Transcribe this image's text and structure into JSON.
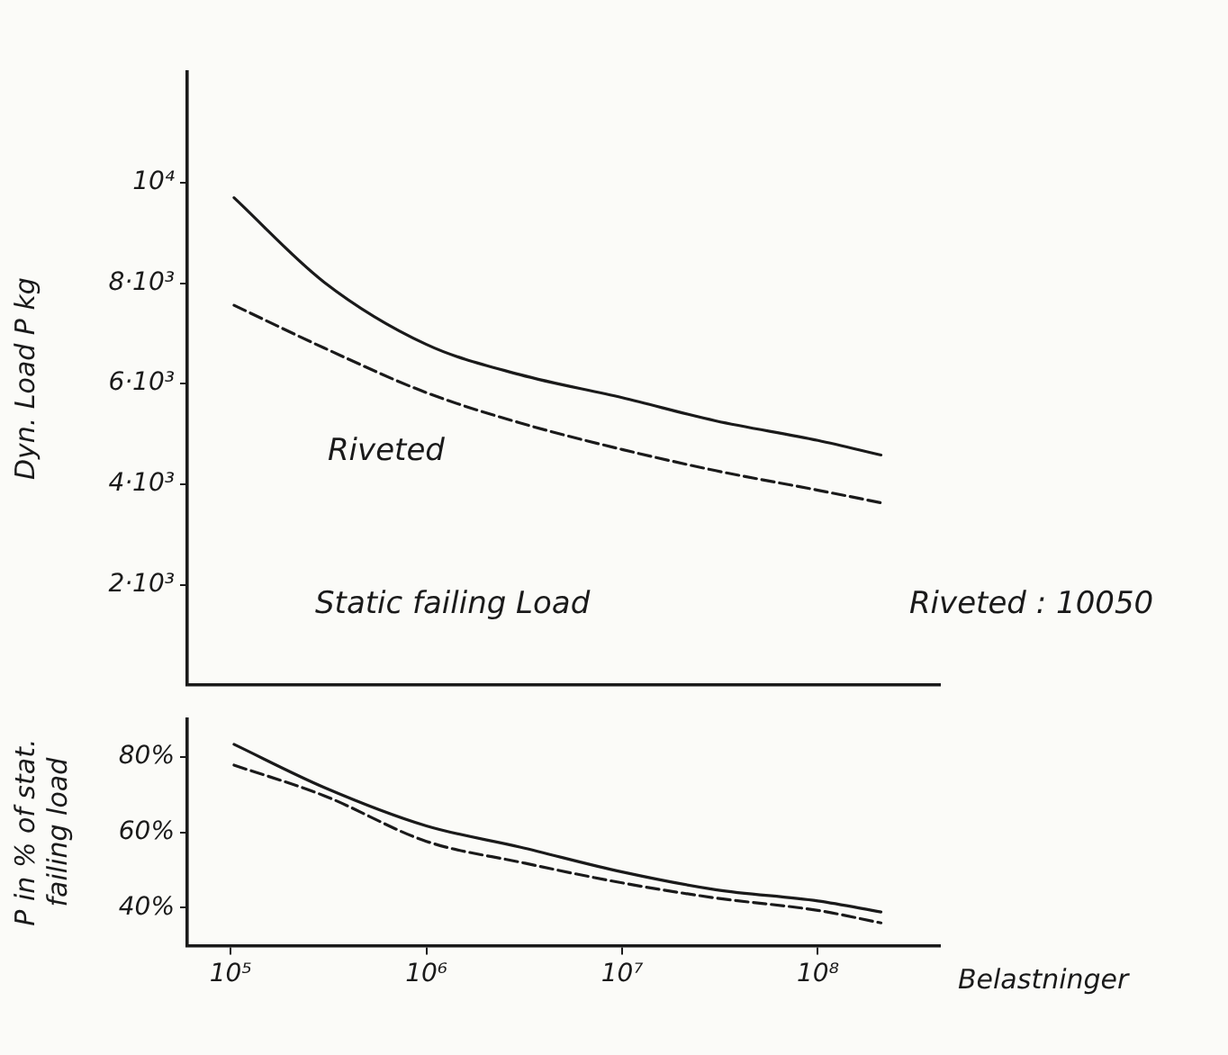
{
  "chart_data": [
    {
      "type": "line",
      "ylabel": "Dyn. Load P kg",
      "x": [
        104000,
        300000,
        1000000,
        3000000,
        10000000,
        30000000,
        100000000,
        210000000
      ],
      "series": [
        {
          "color": "#1a1a1a",
          "line_style": "solid",
          "values": [
            9700,
            8020,
            6780,
            6180,
            5720,
            5260,
            4870,
            4580
          ]
        },
        {
          "name": "Riveted",
          "color": "#1a1a1a",
          "line_style": "dashed",
          "values": [
            7560,
            6710,
            5820,
            5220,
            4690,
            4270,
            3880,
            3630
          ]
        }
      ],
      "xlim": [
        60000,
        420000000
      ],
      "log": "x",
      "ylim": [
        0,
        12200
      ],
      "yticks": [
        {
          "value": 2000,
          "label": "2·10³"
        },
        {
          "value": 4000,
          "label": "4·10³"
        },
        {
          "value": 6000,
          "label": "6·10³"
        },
        {
          "value": 8000,
          "label": "8·10³"
        },
        {
          "value": 10000,
          "label": "10⁴"
        }
      ],
      "tick_labels": "y",
      "grid": false,
      "legend": false,
      "marker": "none",
      "annotations": [
        "Static failing Load",
        "Riveted : 10050"
      ]
    },
    {
      "type": "line",
      "ylabel": "P in % of stat. failing load",
      "xlabel": "Belastninger",
      "x": [
        104000,
        300000,
        1000000,
        3000000,
        10000000,
        30000000,
        100000000,
        210000000
      ],
      "series": [
        {
          "color": "#1a1a1a",
          "line_style": "solid",
          "values": [
            83.3,
            71.9,
            61.7,
            56.1,
            49.5,
            44.8,
            41.8,
            38.9
          ]
        },
        {
          "color": "#1a1a1a",
          "line_style": "dashed",
          "values": [
            77.8,
            69.7,
            57.6,
            52.1,
            46.6,
            42.6,
            39.3,
            36.0
          ]
        }
      ],
      "xlim": [
        60000,
        420000000
      ],
      "xticks": [
        {
          "value": 100000,
          "label": "10⁵"
        },
        {
          "value": 1000000,
          "label": "10⁶"
        },
        {
          "value": 10000000,
          "label": "10⁷"
        },
        {
          "value": 100000000,
          "label": "10⁸"
        }
      ],
      "log": "x",
      "ylim": [
        30,
        90
      ],
      "yticks": [
        {
          "value": 40,
          "label": "40%"
        },
        {
          "value": 60,
          "label": "60%"
        },
        {
          "value": 80,
          "label": "80%"
        }
      ],
      "grid": false,
      "legend": false,
      "marker": "none"
    }
  ]
}
